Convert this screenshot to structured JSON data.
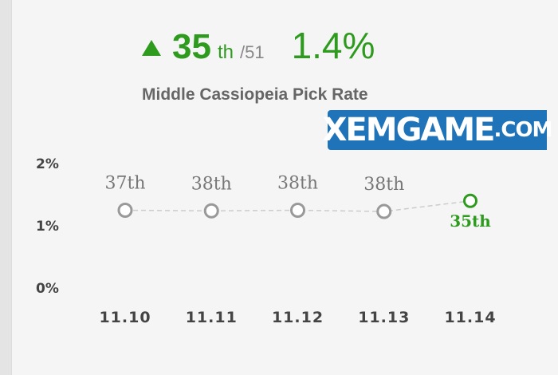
{
  "header": {
    "rank": "35",
    "rank_suffix": "th",
    "rank_total": "/51",
    "pick_rate": "1.4%",
    "trend_icon": "triangle-up-icon",
    "accent_color": "#2e9b1e"
  },
  "title": "Middle Cassiopeia Pick Rate",
  "watermark": {
    "main": "XEMGAME",
    "tld": ".COM",
    "color": "#1f74b9"
  },
  "chart_data": {
    "type": "line",
    "title": "Middle Cassiopeia Pick Rate",
    "xlabel": "",
    "ylabel": "",
    "x": [
      "11.10",
      "11.11",
      "11.12",
      "11.13",
      "11.14"
    ],
    "series": [
      {
        "values": [
          1.25,
          1.24,
          1.25,
          1.23,
          1.4
        ],
        "point_labels": [
          "37th",
          "38th",
          "38th",
          "38th",
          "35th"
        ]
      }
    ],
    "y_ticks": [
      "2%",
      "1%",
      "0%"
    ],
    "ylim": [
      0,
      2
    ],
    "grid": false,
    "line_style": "dashed",
    "point_color": "#999999",
    "current_point_color": "#2e9b1e"
  }
}
